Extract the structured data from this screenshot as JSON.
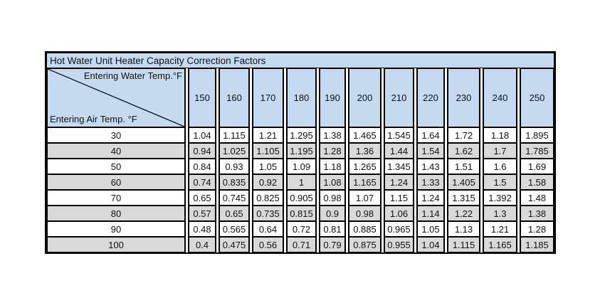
{
  "table": {
    "title": "Hot Water Unit Heater Capacity Correction Factors",
    "corner": {
      "top_label": "Entering Water Temp.°F",
      "bottom_label": "Entering Air Temp. °F"
    },
    "columns": [
      "150",
      "160",
      "170",
      "180",
      "190",
      "200",
      "210",
      "220",
      "230",
      "240",
      "250"
    ],
    "rows": [
      {
        "air_temp": "30",
        "values": [
          "1.04",
          "1.115",
          "1.21",
          "1.295",
          "1.38",
          "1.465",
          "1.545",
          "1.64",
          "1.72",
          "1.18",
          "1.895"
        ]
      },
      {
        "air_temp": "40",
        "values": [
          "0.94",
          "1.025",
          "1.105",
          "1.195",
          "1.28",
          "1.36",
          "1.44",
          "1.54",
          "1.62",
          "1.7",
          "1.785"
        ]
      },
      {
        "air_temp": "50",
        "values": [
          "0.84",
          "0.93",
          "1.05",
          "1.09",
          "1.18",
          "1.265",
          "1.345",
          "1.43",
          "1.51",
          "1.6",
          "1.69"
        ]
      },
      {
        "air_temp": "60",
        "values": [
          "0.74",
          "0.835",
          "0.92",
          "1",
          "1.08",
          "1.165",
          "1.24",
          "1.33",
          "1.405",
          "1.5",
          "1.58"
        ]
      },
      {
        "air_temp": "70",
        "values": [
          "0.65",
          "0.745",
          "0.825",
          "0.905",
          "0.98",
          "1.07",
          "1.15",
          "1.24",
          "1.315",
          "1.392",
          "1.48"
        ]
      },
      {
        "air_temp": "80",
        "values": [
          "0.57",
          "0.65",
          "0.735",
          "0.815",
          "0.9",
          "0.98",
          "1.06",
          "1.14",
          "1.22",
          "1.3",
          "1.38"
        ]
      },
      {
        "air_temp": "90",
        "values": [
          "0.48",
          "0.565",
          "0.64",
          "0.72",
          "0.81",
          "0.885",
          "0.965",
          "1.05",
          "1.13",
          "1.21",
          "1.28"
        ]
      },
      {
        "air_temp": "100",
        "values": [
          "0.4",
          "0.475",
          "0.56",
          "0.71",
          "0.79",
          "0.875",
          "0.955",
          "1.04",
          "1.115",
          "1.165",
          "1.185"
        ]
      }
    ],
    "colors": {
      "header_bg": "#c5d9f1",
      "row_bg": "#ffffff",
      "row_alt_bg": "#d9d9d9",
      "border": "#000000"
    }
  }
}
